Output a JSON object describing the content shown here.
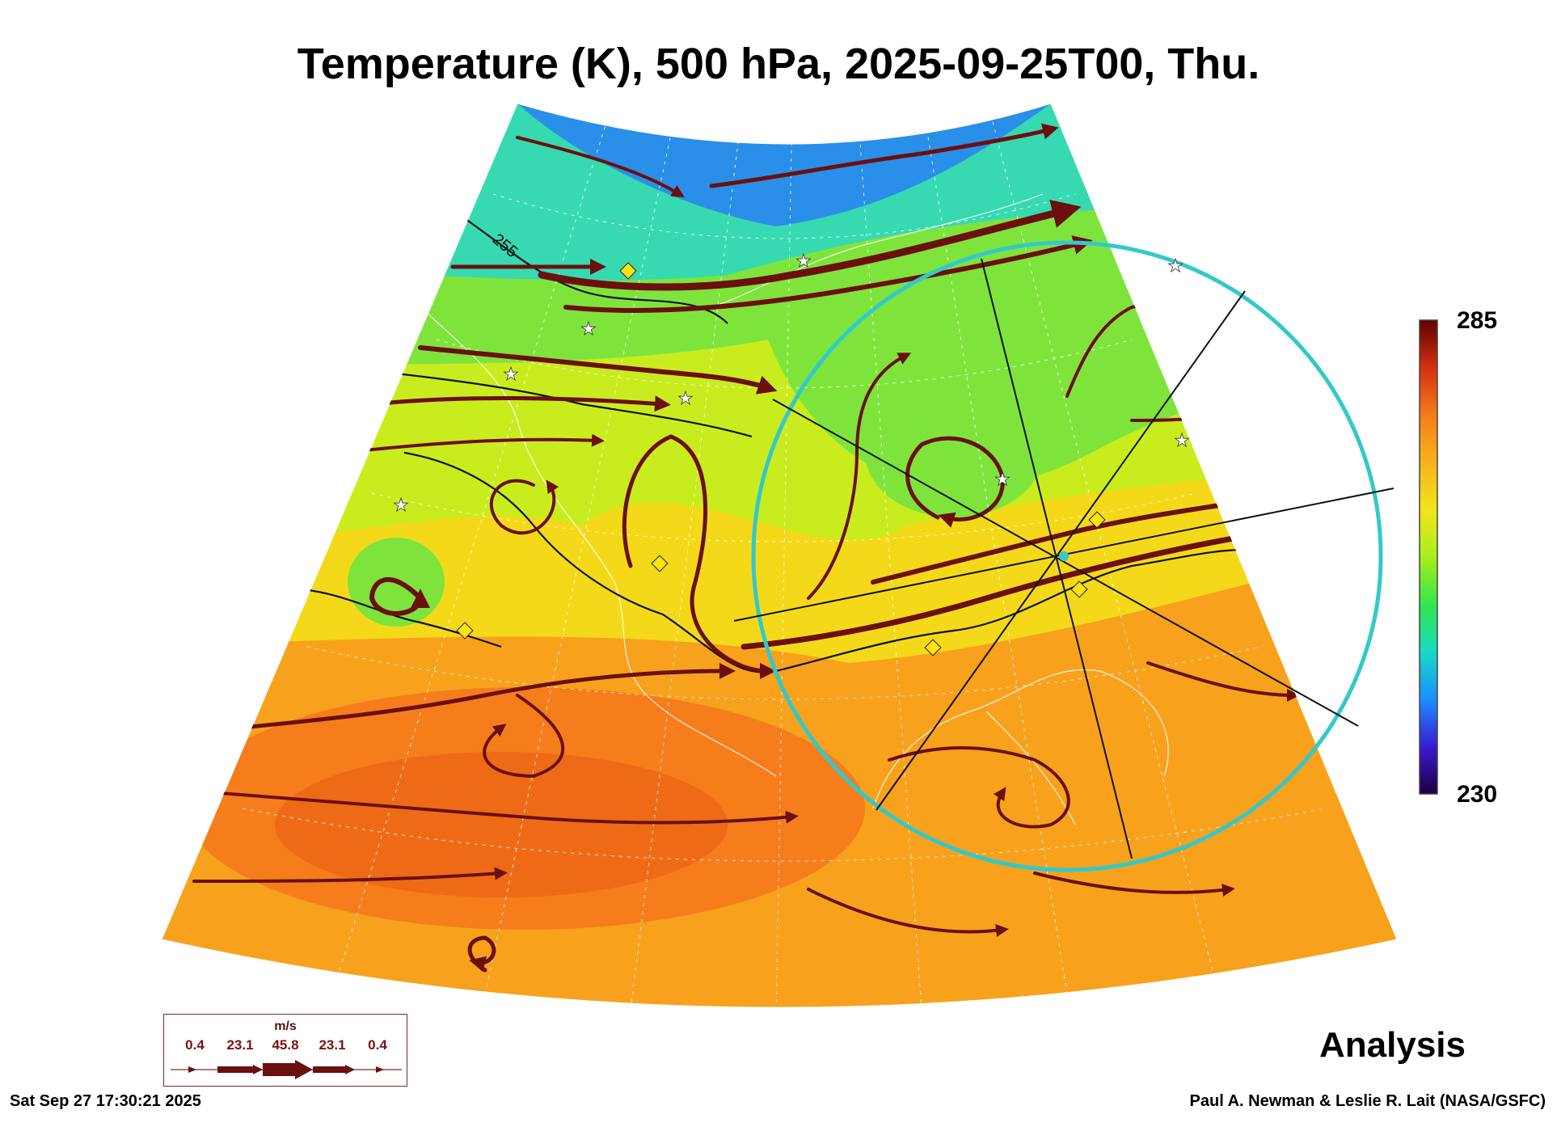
{
  "title": "Temperature (K), 500 hPa, 2025-09-25T00, Thu.",
  "colorbar": {
    "max_label": "285",
    "min_label": "230",
    "colors": [
      "#1a0040",
      "#3a1bd1",
      "#1c8fff",
      "#18d9c3",
      "#33e64b",
      "#a8ee1b",
      "#f1e51c",
      "#f8b21c",
      "#f57c1a",
      "#d43010",
      "#600000"
    ]
  },
  "map": {
    "contour_label": "255",
    "fill_colors": {
      "cold_top": "#2a8fe8",
      "cool": "#37d9b0",
      "mid_green": "#7ee43c",
      "yellow_green": "#c9ec1f",
      "yellow": "#f4d91a",
      "orange": "#f7a11d",
      "warm": "#f57d1c",
      "hot": "#ee6a17"
    },
    "streamline_color": "#6b0f0f",
    "ring_color": "#33c9c9",
    "marker_colors": {
      "diamond": "#ffe20f",
      "star": "#ffffff"
    }
  },
  "wind_legend": {
    "unit": "m/s",
    "values": [
      "0.4",
      "23.1",
      "45.8",
      "23.1",
      "0.4"
    ]
  },
  "analysis_label": "Analysis",
  "timestamp": "Sat Sep 27 17:30:21 2025",
  "credit": "Paul A. Newman & Leslie R. Lait (NASA/GSFC)"
}
